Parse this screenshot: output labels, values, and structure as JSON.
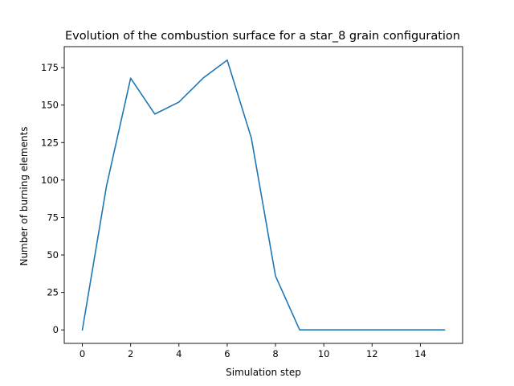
{
  "chart_data": {
    "type": "line",
    "title": "Evolution of the combustion surface for a star_8 grain configuration",
    "xlabel": "Simulation step",
    "ylabel": "Number of burning elements",
    "xlim": [
      -0.75,
      15.75
    ],
    "ylim": [
      -9,
      189
    ],
    "x_ticks": [
      0,
      2,
      4,
      6,
      8,
      10,
      12,
      14
    ],
    "y_ticks": [
      0,
      25,
      50,
      75,
      100,
      125,
      150,
      175
    ],
    "grid": false,
    "legend": "none",
    "series": [
      {
        "color": "#1f77b4",
        "x": [
          0,
          1,
          2,
          3,
          4,
          5,
          6,
          7,
          8,
          9,
          10,
          11,
          12,
          13,
          14,
          15
        ],
        "values": [
          0,
          96,
          168,
          144,
          152,
          168,
          180,
          128,
          36,
          0,
          0,
          0,
          0,
          0,
          0,
          0
        ]
      }
    ]
  }
}
